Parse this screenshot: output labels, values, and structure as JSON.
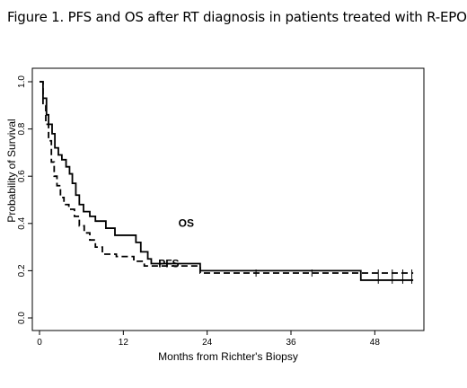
{
  "figure_title": "Figure 1.  PFS and OS after RT diagnosis in patients treated with R-EPOCH",
  "chart_data": {
    "type": "line",
    "title": "Figure 1.  PFS and OS after RT diagnosis in patients treated with R-EPOCH",
    "xlabel": "Months from Richter's Biopsy",
    "ylabel": "Probability of Survival",
    "xlim": [
      0,
      54
    ],
    "ylim": [
      0,
      1.0
    ],
    "x_ticks": [
      0,
      12,
      24,
      36,
      48
    ],
    "x_tick_labels": [
      "0",
      "12",
      "24",
      "36",
      "48"
    ],
    "y_ticks": [
      0.0,
      0.2,
      0.4,
      0.6,
      0.8,
      1.0
    ],
    "y_tick_labels": [
      "0.0",
      "0.2",
      "0.4",
      "0.6",
      "0.8",
      "1.0"
    ],
    "grid": false,
    "legend": "inline labels",
    "series": [
      {
        "name": "OS",
        "style": "solid",
        "color": "#000000",
        "x": [
          0,
          0.5,
          1.0,
          1.3,
          1.8,
          2.2,
          2.7,
          3.2,
          3.8,
          4.3,
          4.7,
          5.2,
          5.7,
          6.3,
          7.2,
          8.0,
          9.5,
          10.8,
          13.8,
          14.5,
          15.5,
          16.0,
          23.0,
          46.0,
          53.5
        ],
        "y": [
          1.0,
          0.93,
          0.86,
          0.82,
          0.78,
          0.72,
          0.69,
          0.67,
          0.64,
          0.61,
          0.57,
          0.52,
          0.48,
          0.45,
          0.43,
          0.41,
          0.38,
          0.35,
          0.32,
          0.28,
          0.25,
          0.23,
          0.2,
          0.16,
          0.16
        ],
        "censor_x": [
          48.5,
          50.5,
          52.0,
          53.3
        ],
        "censor_y": [
          0.16,
          0.16,
          0.16,
          0.16
        ]
      },
      {
        "name": "PFS",
        "style": "dashed",
        "color": "#000000",
        "x": [
          0,
          0.5,
          0.9,
          1.3,
          1.7,
          2.1,
          2.5,
          3.0,
          3.5,
          4.2,
          5.0,
          5.7,
          6.4,
          7.2,
          8.0,
          9.0,
          11.0,
          13.5,
          15.0,
          23.0,
          53.5
        ],
        "y": [
          1.0,
          0.9,
          0.82,
          0.75,
          0.66,
          0.6,
          0.56,
          0.51,
          0.48,
          0.46,
          0.43,
          0.39,
          0.36,
          0.33,
          0.3,
          0.27,
          0.26,
          0.24,
          0.22,
          0.19,
          0.19
        ],
        "censor_x": [
          31.0,
          39.0,
          48.5,
          50.5,
          52.0,
          53.3
        ],
        "censor_y": [
          0.19,
          0.19,
          0.19,
          0.19,
          0.19,
          0.19
        ]
      }
    ],
    "annotations": [
      {
        "text": "OS",
        "x": 21.0,
        "y": 0.385
      },
      {
        "text": "PFS",
        "x": 18.5,
        "y": 0.215
      }
    ]
  }
}
